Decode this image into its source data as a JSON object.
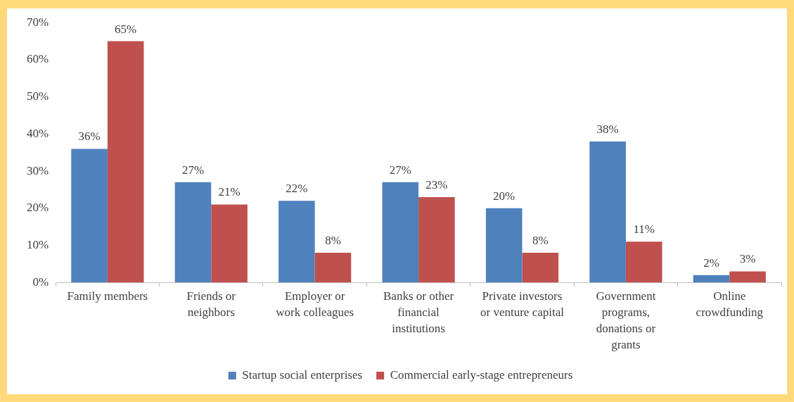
{
  "chart_data": {
    "type": "bar",
    "categories": [
      "Family members",
      "Friends or neighbors",
      "Employer or work colleagues",
      "Banks or other financial institutions",
      "Private investors or venture capital",
      "Government programs, donations or grants",
      "Online crowdfunding"
    ],
    "series": [
      {
        "name": "Startup social enterprises",
        "color": "#4f81bd",
        "values": [
          36,
          27,
          22,
          27,
          20,
          38,
          2
        ],
        "value_labels": [
          "36%",
          "27%",
          "22%",
          "27%",
          "20%",
          "38%",
          "2%"
        ]
      },
      {
        "name": "Commercial early-stage entrepreneurs",
        "color": "#c0504d",
        "values": [
          65,
          21,
          8,
          23,
          8,
          11,
          3
        ],
        "value_labels": [
          "65%",
          "21%",
          "8%",
          "23%",
          "8%",
          "11%",
          "3%"
        ]
      }
    ],
    "ylim": [
      0,
      70
    ],
    "yticks": [
      {
        "value": 0,
        "label": "0%"
      },
      {
        "value": 10,
        "label": "10%"
      },
      {
        "value": 20,
        "label": "20%"
      },
      {
        "value": 30,
        "label": "30%"
      },
      {
        "value": 40,
        "label": "40%"
      },
      {
        "value": 50,
        "label": "50%"
      },
      {
        "value": 60,
        "label": "60%"
      },
      {
        "value": 70,
        "label": "70%"
      }
    ],
    "grid": false,
    "legend": "bottom"
  }
}
